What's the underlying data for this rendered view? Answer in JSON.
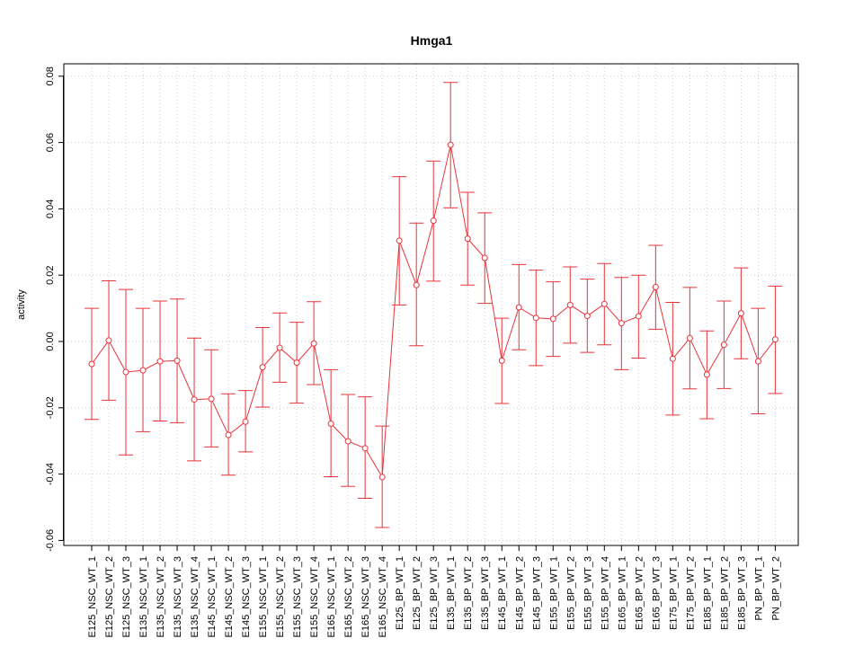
{
  "chart_data": {
    "type": "line",
    "title": "Hmga1",
    "xlabel": "",
    "ylabel": "activity",
    "ylim": [
      -0.061,
      0.085
    ],
    "yticks": [
      "-0.06",
      "-0.04",
      "-0.02",
      "0.00",
      "0.02",
      "0.04",
      "0.06",
      "0.08"
    ],
    "ytick_values": [
      -0.06,
      -0.04,
      -0.02,
      0.0,
      0.02,
      0.04,
      0.06,
      0.08
    ],
    "grid": true,
    "color": "#e8333a",
    "grid_color": "#cccccc",
    "categories": [
      "E125_NSC_WT_1",
      "E125_NSC_WT_2",
      "E125_NSC_WT_3",
      "E135_NSC_WT_1",
      "E135_NSC_WT_2",
      "E135_NSC_WT_3",
      "E135_NSC_WT_4",
      "E145_NSC_WT_1",
      "E145_NSC_WT_2",
      "E145_NSC_WT_3",
      "E155_NSC_WT_1",
      "E155_NSC_WT_2",
      "E155_NSC_WT_3",
      "E155_NSC_WT_4",
      "E165_NSC_WT_1",
      "E165_NSC_WT_2",
      "E165_NSC_WT_3",
      "E165_NSC_WT_4",
      "E125_BP_WT_1",
      "E125_BP_WT_2",
      "E125_BP_WT_3",
      "E135_BP_WT_1",
      "E135_BP_WT_2",
      "E135_BP_WT_3",
      "E145_BP_WT_1",
      "E145_BP_WT_2",
      "E145_BP_WT_3",
      "E155_BP_WT_1",
      "E155_BP_WT_2",
      "E155_BP_WT_3",
      "E155_BP_WT_4",
      "E165_BP_WT_1",
      "E165_BP_WT_2",
      "E165_BP_WT_3",
      "E175_BP_WT_1",
      "E175_BP_WT_2",
      "E185_BP_WT_1",
      "E185_BP_WT_2",
      "E185_BP_WT_3",
      "PN_BP_WT_1",
      "PN_BP_WT_2"
    ],
    "values": [
      -0.0068,
      0.0003,
      -0.0092,
      -0.0087,
      -0.006,
      -0.0058,
      -0.0175,
      -0.0173,
      -0.0282,
      -0.0242,
      -0.0078,
      -0.0019,
      -0.0064,
      -0.0006,
      -0.0248,
      -0.0301,
      -0.0322,
      -0.0409,
      0.0304,
      0.017,
      0.0364,
      0.0593,
      0.031,
      0.0252,
      -0.0058,
      0.0103,
      0.0071,
      0.0068,
      0.011,
      0.0077,
      0.0113,
      0.0055,
      0.0076,
      0.0164,
      -0.0052,
      0.001,
      -0.01,
      -0.001,
      0.0085,
      -0.006,
      0.0006
    ],
    "upper": [
      0.01,
      0.0183,
      0.0157,
      0.01,
      0.0122,
      0.0128,
      0.001,
      -0.0025,
      -0.0158,
      -0.0148,
      0.0042,
      0.0086,
      0.0058,
      0.012,
      -0.0085,
      -0.016,
      -0.0167,
      -0.0255,
      0.0497,
      0.0357,
      0.0544,
      0.0781,
      0.045,
      0.0388,
      0.007,
      0.0232,
      0.0215,
      0.018,
      0.0225,
      0.0188,
      0.0235,
      0.0193,
      0.02,
      0.029,
      0.0118,
      0.0163,
      0.0032,
      0.0122,
      0.0222,
      0.01,
      0.0167
    ],
    "lower": [
      -0.0235,
      -0.0177,
      -0.0342,
      -0.0272,
      -0.024,
      -0.0245,
      -0.036,
      -0.0318,
      -0.0403,
      -0.0333,
      -0.0198,
      -0.0123,
      -0.0186,
      -0.013,
      -0.0408,
      -0.0437,
      -0.0473,
      -0.0561,
      0.011,
      -0.0013,
      0.0182,
      0.0403,
      0.017,
      0.0115,
      -0.0187,
      -0.0025,
      -0.0073,
      -0.0045,
      -0.0005,
      -0.0033,
      -0.001,
      -0.0085,
      -0.005,
      0.0037,
      -0.0222,
      -0.0143,
      -0.0233,
      -0.0142,
      -0.0052,
      -0.0218,
      -0.0157
    ]
  }
}
